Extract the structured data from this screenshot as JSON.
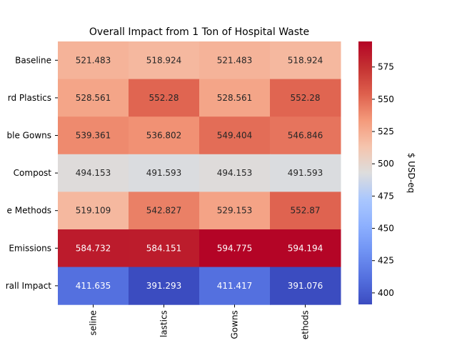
{
  "chart_data": {
    "type": "heatmap",
    "title": "Overall Impact from 1 Ton of Hospital Waste",
    "row_labels": [
      "Baseline",
      "rd Plastics",
      "ble Gowns",
      "Compost",
      "e Methods",
      "Emissions",
      "rall Impact"
    ],
    "col_labels": [
      "seline",
      "lastics",
      "Gowns",
      "ethods"
    ],
    "values": [
      [
        521.483,
        518.924,
        521.483,
        518.924
      ],
      [
        528.561,
        552.28,
        528.561,
        552.28
      ],
      [
        539.361,
        536.802,
        549.404,
        546.846
      ],
      [
        494.153,
        491.593,
        494.153,
        491.593
      ],
      [
        519.109,
        542.827,
        529.153,
        552.87
      ],
      [
        584.732,
        584.151,
        594.775,
        594.194
      ],
      [
        411.635,
        391.293,
        411.417,
        391.076
      ]
    ],
    "value_labels": [
      [
        "521.483",
        "518.924",
        "521.483",
        "518.924"
      ],
      [
        "528.561",
        "552.28",
        "528.561",
        "552.28"
      ],
      [
        "539.361",
        "536.802",
        "549.404",
        "546.846"
      ],
      [
        "494.153",
        "491.593",
        "494.153",
        "491.593"
      ],
      [
        "519.109",
        "542.827",
        "529.153",
        "552.87"
      ],
      [
        "584.732",
        "584.151",
        "594.775",
        "594.194"
      ],
      [
        "411.635",
        "391.293",
        "411.417",
        "391.076"
      ]
    ],
    "colormap": "coolwarm",
    "vmin": 391.076,
    "vmax": 594.775,
    "colorbar": {
      "label": "$ USD-eq",
      "ticks": [
        400,
        425,
        450,
        475,
        500,
        525,
        550,
        575
      ],
      "tick_labels": [
        "400",
        "425",
        "450",
        "475",
        "500",
        "525",
        "550",
        "575"
      ]
    }
  }
}
